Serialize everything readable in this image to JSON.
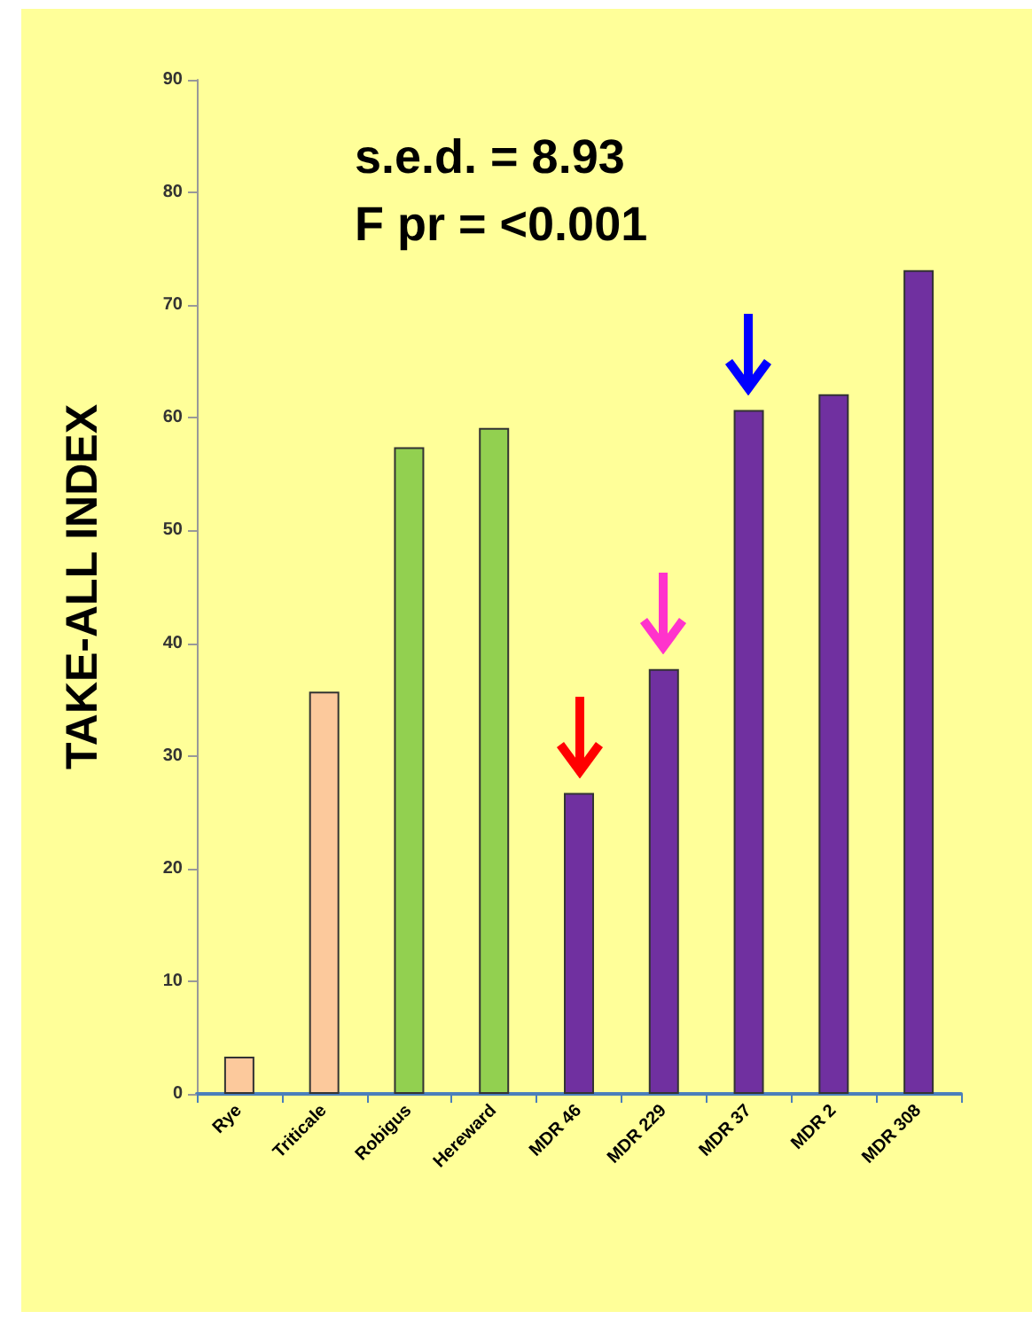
{
  "chart_data": {
    "type": "bar",
    "ylabel": "TAKE-ALL INDEX",
    "categories": [
      "Rye",
      "Triticale",
      "Robigus",
      "Hereward",
      "MDR 46",
      "MDR 229",
      "MDR 37",
      "MDR 2",
      "MDR 308"
    ],
    "values": [
      3.3,
      35.7,
      57.4,
      59.1,
      26.7,
      37.7,
      60.7,
      62.1,
      73.1
    ],
    "colors": [
      "#fcc99c",
      "#fcc99c",
      "#92d050",
      "#92d050",
      "#7030a0",
      "#7030a0",
      "#7030a0",
      "#7030a0",
      "#7030a0"
    ],
    "ylim": [
      0,
      90
    ],
    "yticks": [
      0,
      10,
      20,
      30,
      40,
      50,
      60,
      70,
      80,
      90
    ],
    "annotations": [
      "s.e.d. = 8.93",
      "F pr = <0.001"
    ]
  }
}
